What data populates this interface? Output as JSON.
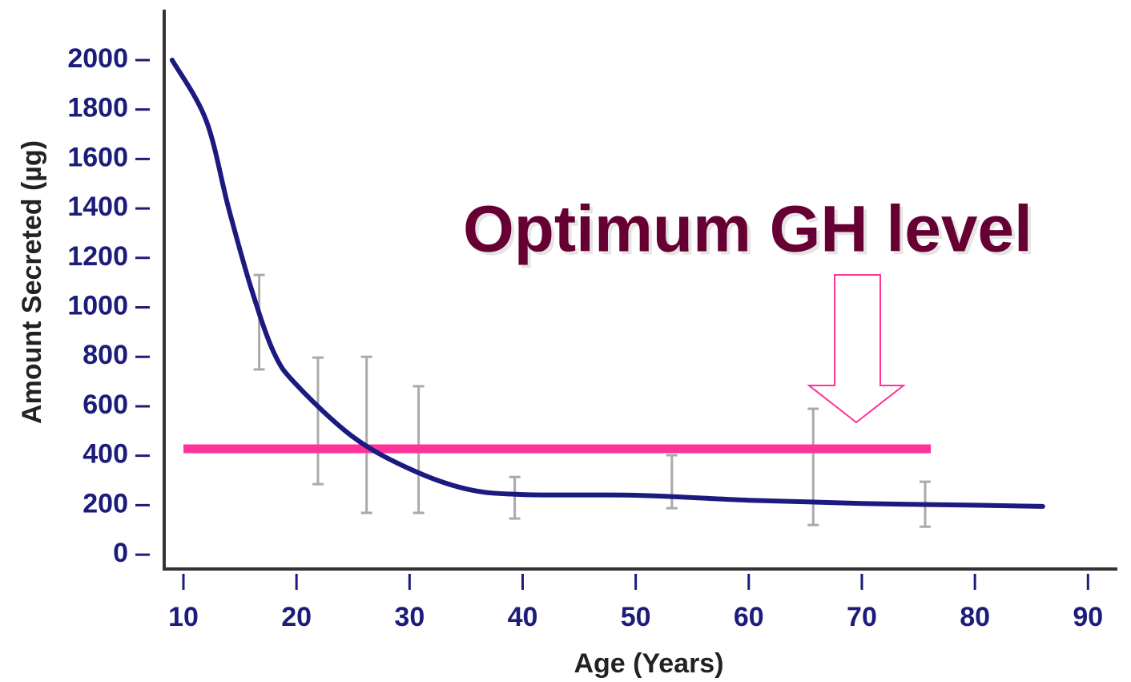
{
  "chart_data": {
    "type": "line",
    "x_label": "Age (Years)",
    "y_label": "Amount Secreted (µg)",
    "annotation": "Optimum GH level",
    "xlim": [
      8.3,
      92.6
    ],
    "ylim": [
      -58,
      2204
    ],
    "xticks": [
      10,
      20,
      30,
      40,
      50,
      60,
      70,
      80,
      90
    ],
    "yticks": [
      0,
      200,
      400,
      600,
      800,
      1000,
      1200,
      1400,
      1600,
      1800,
      2000
    ],
    "series": [
      {
        "color": "#1a1a80",
        "x": [
          9,
          12,
          14,
          16,
          18,
          20,
          25,
          30,
          35,
          40,
          50,
          60,
          70,
          80,
          86
        ],
        "values": [
          2000,
          1757,
          1400,
          1076,
          817,
          687,
          476,
          347,
          266,
          243,
          240,
          220,
          207,
          200,
          195
        ]
      }
    ],
    "error_bars": {
      "color": "#aaaaaa",
      "x": [
        16.7,
        21.9,
        26.2,
        30.8,
        39.3,
        53.2,
        65.7,
        75.6
      ],
      "low": [
        749,
        285,
        169,
        169,
        146,
        188,
        120,
        113
      ],
      "high": [
        1131,
        797,
        800,
        681,
        314,
        402,
        590,
        295
      ]
    },
    "reference_line": {
      "x": [
        10,
        76.1
      ],
      "value": 428,
      "color": "#ff3399"
    }
  }
}
